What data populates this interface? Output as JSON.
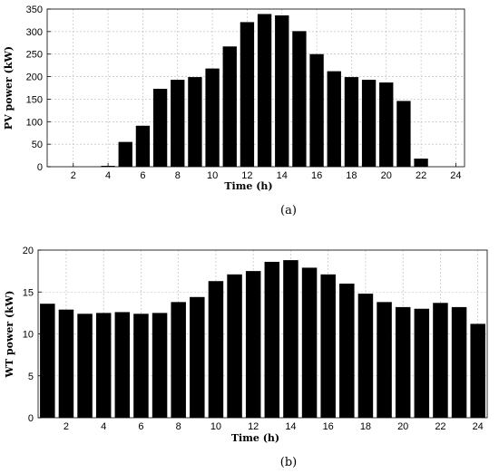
{
  "chart_data": [
    {
      "type": "bar",
      "caption": "(a)",
      "xlabel": "Time (h)",
      "ylabel": "PV power (kW)",
      "xlim": [
        1,
        24
      ],
      "ylim": [
        0,
        350
      ],
      "xticks": [
        2,
        4,
        6,
        8,
        10,
        12,
        14,
        16,
        18,
        20,
        22,
        24
      ],
      "yticks": [
        0,
        50,
        100,
        150,
        200,
        250,
        300,
        350
      ],
      "grid": true,
      "bar_color": "#000000",
      "x": [
        1,
        2,
        3,
        4,
        5,
        6,
        7,
        8,
        9,
        10,
        11,
        12,
        13,
        14,
        15,
        16,
        17,
        18,
        19,
        20,
        21,
        22,
        23,
        24
      ],
      "values": [
        0,
        0,
        0,
        2,
        55,
        91,
        173,
        193,
        199,
        218,
        267,
        321,
        339,
        336,
        301,
        250,
        212,
        199,
        193,
        187,
        146,
        18,
        0,
        0
      ]
    },
    {
      "type": "bar",
      "caption": "(b)",
      "xlabel": "Time (h)",
      "ylabel": "WT power (kW)",
      "xlim": [
        1,
        24
      ],
      "ylim": [
        0,
        20
      ],
      "xticks": [
        2,
        4,
        6,
        8,
        10,
        12,
        14,
        16,
        18,
        20,
        22,
        24
      ],
      "yticks": [
        0,
        5,
        10,
        15,
        20
      ],
      "grid": true,
      "bar_color": "#000000",
      "x": [
        1,
        2,
        3,
        4,
        5,
        6,
        7,
        8,
        9,
        10,
        11,
        12,
        13,
        14,
        15,
        16,
        17,
        18,
        19,
        20,
        21,
        22,
        23,
        24
      ],
      "values": [
        13.6,
        12.9,
        12.4,
        12.5,
        12.6,
        12.4,
        12.5,
        13.8,
        14.4,
        16.3,
        17.1,
        17.5,
        18.6,
        18.8,
        17.9,
        17.1,
        16.0,
        14.8,
        13.8,
        13.2,
        13.0,
        13.7,
        13.2,
        11.2
      ]
    }
  ]
}
